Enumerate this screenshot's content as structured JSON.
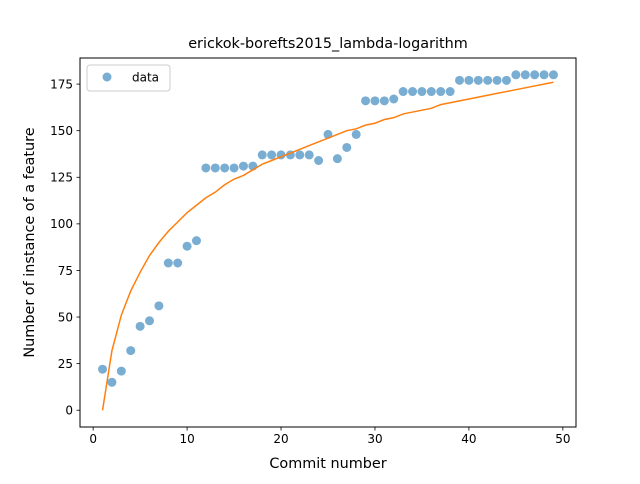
{
  "chart_data": {
    "type": "scatter",
    "title": "erickok-borefts2015_lambda-logarithm",
    "xlabel": "Commit number",
    "ylabel": "Number of instance of a feature",
    "xlim": [
      -1.4,
      51.4
    ],
    "ylim": [
      -9,
      189
    ],
    "xticks": [
      0,
      10,
      20,
      30,
      40,
      50
    ],
    "yticks": [
      0,
      25,
      50,
      75,
      100,
      125,
      150,
      175
    ],
    "legend": {
      "position": "top-left",
      "entries": [
        "data"
      ]
    },
    "colors": {
      "data": "#1f77b4",
      "fit": "#ff7f0e"
    },
    "series": [
      {
        "name": "data",
        "kind": "scatter",
        "x": [
          1,
          2,
          3,
          4,
          5,
          6,
          7,
          8,
          9,
          10,
          11,
          12,
          13,
          14,
          15,
          16,
          17,
          18,
          19,
          20,
          21,
          22,
          23,
          24,
          25,
          26,
          27,
          28,
          29,
          30,
          31,
          32,
          33,
          34,
          35,
          36,
          37,
          38,
          39,
          40,
          41,
          42,
          43,
          44,
          45,
          46,
          47,
          48,
          49
        ],
        "y": [
          22,
          15,
          21,
          32,
          45,
          48,
          56,
          79,
          79,
          88,
          91,
          130,
          130,
          130,
          130,
          131,
          131,
          137,
          137,
          137,
          137,
          137,
          137,
          134,
          148,
          135,
          141,
          148,
          166,
          166,
          166,
          167,
          171,
          171,
          171,
          171,
          171,
          171,
          177,
          177,
          177,
          177,
          177,
          177,
          180,
          180,
          180,
          180,
          180
        ]
      },
      {
        "kind": "line",
        "x": [
          1,
          2,
          3,
          4,
          5,
          6,
          7,
          8,
          9,
          10,
          11,
          12,
          13,
          14,
          15,
          16,
          17,
          18,
          19,
          20,
          21,
          22,
          23,
          24,
          25,
          26,
          27,
          28,
          29,
          30,
          31,
          32,
          33,
          34,
          35,
          36,
          37,
          38,
          39,
          40,
          41,
          42,
          43,
          44,
          45,
          46,
          47,
          48,
          49
        ],
        "y": [
          0,
          32,
          51,
          64,
          74,
          83,
          90,
          96,
          101,
          106,
          110,
          114,
          117,
          121,
          124,
          126,
          129,
          132,
          134,
          136,
          138,
          140,
          142,
          144,
          146,
          148,
          150,
          151,
          153,
          154,
          156,
          157,
          159,
          160,
          161,
          162,
          164,
          165,
          166,
          167,
          168,
          169,
          170,
          171,
          172,
          173,
          174,
          175,
          176
        ]
      }
    ]
  }
}
